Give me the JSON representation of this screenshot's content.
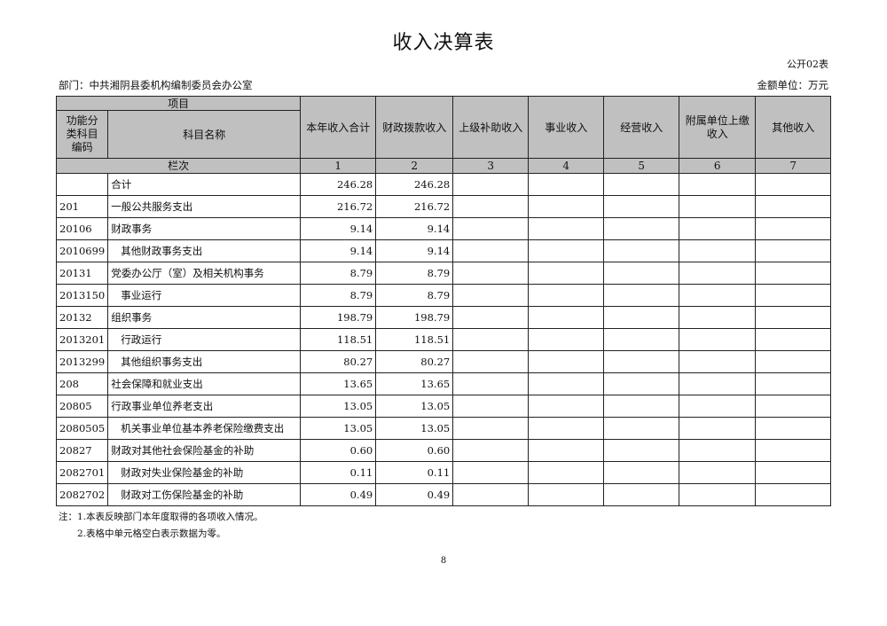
{
  "title": "收入决算表",
  "form_no": "公开02表",
  "department": "部门：中共湘阴县委机构编制委员会办公室",
  "unit": "金额单位：万元",
  "header": {
    "project": "项目",
    "code": "功能分类科目编码",
    "name": "科目名称",
    "columns": [
      "本年收入合计",
      "财政拨款收入",
      "上级补助收入",
      "事业收入",
      "经营收入",
      "附属单位上缴收入",
      "其他收入"
    ],
    "row_index_label": "栏次",
    "column_numbers": [
      "1",
      "2",
      "3",
      "4",
      "5",
      "6",
      "7"
    ]
  },
  "rows": [
    {
      "code": "",
      "name": "合计",
      "total": "246.28",
      "fiscal": "246.28",
      "indent": false
    },
    {
      "code": "201",
      "name": "一般公共服务支出",
      "total": "216.72",
      "fiscal": "216.72",
      "indent": false
    },
    {
      "code": "20106",
      "name": "财政事务",
      "total": "9.14",
      "fiscal": "9.14",
      "indent": false
    },
    {
      "code": "2010699",
      "name": "其他财政事务支出",
      "total": "9.14",
      "fiscal": "9.14",
      "indent": true
    },
    {
      "code": "20131",
      "name": "党委办公厅（室）及相关机构事务",
      "total": "8.79",
      "fiscal": "8.79",
      "indent": false
    },
    {
      "code": "2013150",
      "name": "事业运行",
      "total": "8.79",
      "fiscal": "8.79",
      "indent": true
    },
    {
      "code": "20132",
      "name": "组织事务",
      "total": "198.79",
      "fiscal": "198.79",
      "indent": false
    },
    {
      "code": "2013201",
      "name": "行政运行",
      "total": "118.51",
      "fiscal": "118.51",
      "indent": true
    },
    {
      "code": "2013299",
      "name": "其他组织事务支出",
      "total": "80.27",
      "fiscal": "80.27",
      "indent": true
    },
    {
      "code": "208",
      "name": "社会保障和就业支出",
      "total": "13.65",
      "fiscal": "13.65",
      "indent": false
    },
    {
      "code": "20805",
      "name": "行政事业单位养老支出",
      "total": "13.05",
      "fiscal": "13.05",
      "indent": false
    },
    {
      "code": "2080505",
      "name": "机关事业单位基本养老保险缴费支出",
      "total": "13.05",
      "fiscal": "13.05",
      "indent": true
    },
    {
      "code": "20827",
      "name": "财政对其他社会保险基金的补助",
      "total": "0.60",
      "fiscal": "0.60",
      "indent": false
    },
    {
      "code": "2082701",
      "name": "财政对失业保险基金的补助",
      "total": "0.11",
      "fiscal": "0.11",
      "indent": true
    },
    {
      "code": "2082702",
      "name": "财政对工伤保险基金的补助",
      "total": "0.49",
      "fiscal": "0.49",
      "indent": true
    }
  ],
  "notes": [
    "注：1.本表反映部门本年度取得的各项收入情况。",
    "　　2.表格中单元格空白表示数据为零。"
  ],
  "page_number": "8"
}
